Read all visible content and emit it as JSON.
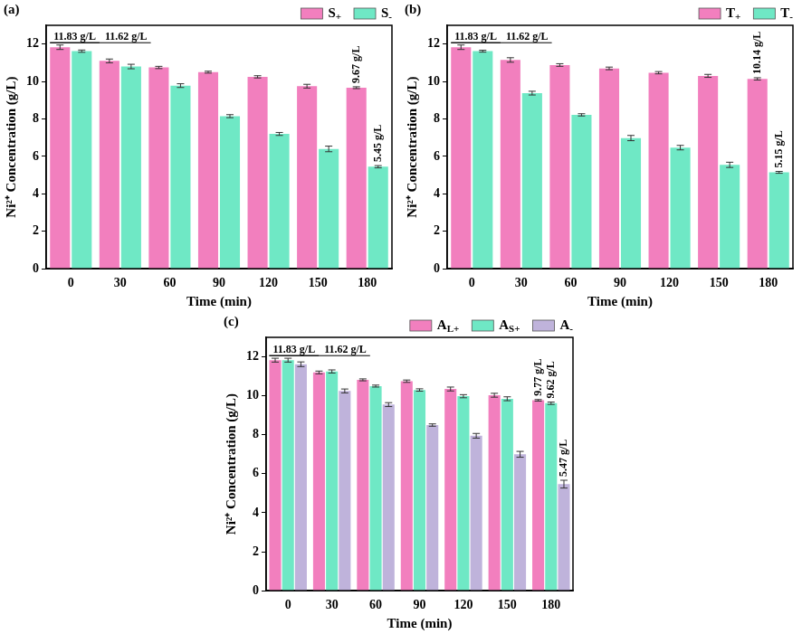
{
  "chart_data": [
    {
      "type": "bar",
      "title": "(a)",
      "x_label": "Time (min)",
      "y_label": "Ni²⁺ Concentration (g/L)",
      "categories": [
        "0",
        "30",
        "60",
        "90",
        "120",
        "150",
        "180"
      ],
      "series": [
        {
          "name": "S+",
          "color": "#f27fbe",
          "values": [
            11.83,
            11.1,
            10.75,
            10.5,
            10.25,
            9.75,
            9.67
          ],
          "errors": [
            0.12,
            0.1,
            0.06,
            0.05,
            0.06,
            0.1,
            0.05
          ]
        },
        {
          "name": "S-",
          "color": "#6fe8c5",
          "values": [
            11.62,
            10.8,
            9.78,
            8.15,
            7.2,
            6.4,
            5.45
          ],
          "errors": [
            0.06,
            0.12,
            0.1,
            0.08,
            0.08,
            0.15,
            0.06
          ]
        }
      ],
      "ylim": [
        0,
        13
      ],
      "yticks": [
        0,
        2,
        4,
        6,
        8,
        10,
        12
      ],
      "grid": false,
      "legend": "upper right",
      "annotations": [
        {
          "text": "11.83 g/L",
          "category": "0",
          "series": "S+"
        },
        {
          "text": "11.62 g/L",
          "category": "0",
          "series": "S-"
        },
        {
          "text": "9.67 g/L",
          "category": "180",
          "series": "S+"
        },
        {
          "text": "5.45 g/L",
          "category": "180",
          "series": "S-"
        }
      ]
    },
    {
      "type": "bar",
      "title": "(b)",
      "x_label": "Time (min)",
      "y_label": "Ni²⁺ Concentration (g/L)",
      "categories": [
        "0",
        "30",
        "60",
        "90",
        "120",
        "150",
        "180"
      ],
      "series": [
        {
          "name": "T+",
          "color": "#f27fbe",
          "values": [
            11.83,
            11.15,
            10.88,
            10.7,
            10.47,
            10.3,
            10.14
          ],
          "errors": [
            0.12,
            0.12,
            0.07,
            0.07,
            0.06,
            0.08,
            0.06
          ]
        },
        {
          "name": "T-",
          "color": "#6fe8c5",
          "values": [
            11.62,
            9.38,
            8.22,
            6.98,
            6.47,
            5.55,
            5.15
          ],
          "errors": [
            0.05,
            0.1,
            0.06,
            0.14,
            0.12,
            0.14,
            0.05
          ]
        }
      ],
      "ylim": [
        0,
        13
      ],
      "yticks": [
        0,
        2,
        4,
        6,
        8,
        10,
        12
      ],
      "grid": false,
      "legend": "upper right",
      "annotations": [
        {
          "text": "11.83 g/L",
          "category": "0",
          "series": "T+"
        },
        {
          "text": "11.62 g/L",
          "category": "0",
          "series": "T-"
        },
        {
          "text": "10.14 g/L",
          "category": "180",
          "series": "T+"
        },
        {
          "text": "5.15 g/L",
          "category": "180",
          "series": "T-"
        }
      ]
    },
    {
      "type": "bar",
      "title": "(c)",
      "x_label": "Time (min)",
      "y_label": "Ni²⁺ Concentration (g/L)",
      "categories": [
        "0",
        "30",
        "60",
        "90",
        "120",
        "150",
        "180"
      ],
      "series": [
        {
          "name": "AL+",
          "color": "#f27fbe",
          "values": [
            11.83,
            11.2,
            10.82,
            10.75,
            10.35,
            10.03,
            9.77
          ],
          "errors": [
            0.1,
            0.07,
            0.05,
            0.06,
            0.1,
            0.1,
            0.04
          ]
        },
        {
          "name": "AS+",
          "color": "#6fe8c5",
          "values": [
            11.83,
            11.25,
            10.5,
            10.3,
            9.98,
            9.85,
            9.62
          ],
          "errors": [
            0.1,
            0.08,
            0.05,
            0.06,
            0.08,
            0.1,
            0.06
          ]
        },
        {
          "name": "A-",
          "color": "#bfb3db",
          "values": [
            11.62,
            10.25,
            9.55,
            8.5,
            7.95,
            7.0,
            5.47
          ],
          "errors": [
            0.12,
            0.1,
            0.1,
            0.06,
            0.12,
            0.15,
            0.2
          ]
        }
      ],
      "ylim": [
        0,
        13
      ],
      "yticks": [
        0,
        2,
        4,
        6,
        8,
        10,
        12
      ],
      "grid": false,
      "legend": "upper right",
      "annotations": [
        {
          "text": "11.83 g/L",
          "category": "0",
          "series": "AL+"
        },
        {
          "text": "11.62 g/L",
          "category": "0",
          "series": "A-"
        },
        {
          "text": "9.77 g/L",
          "category": "180",
          "series": "AL+"
        },
        {
          "text": "9.62 g/L",
          "category": "180",
          "series": "AS+"
        },
        {
          "text": "5.47 g/L",
          "category": "180",
          "series": "A-"
        }
      ]
    }
  ]
}
